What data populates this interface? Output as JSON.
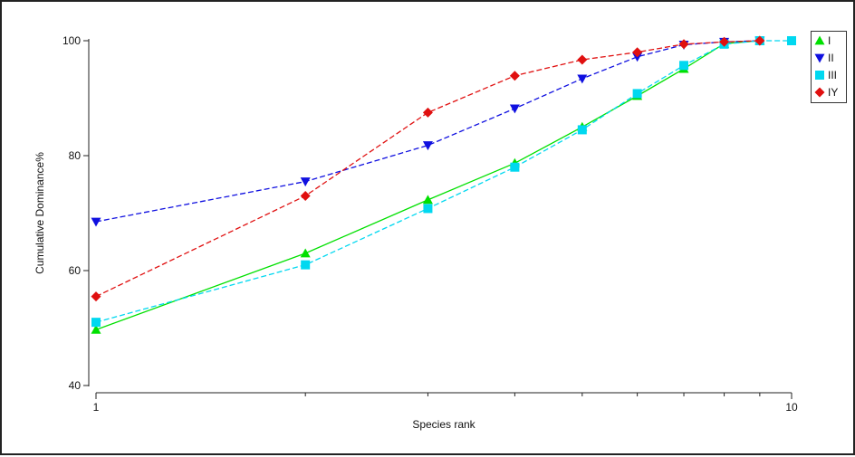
{
  "chart_data": {
    "type": "line",
    "title": "",
    "xlabel": "Species rank",
    "ylabel": "Cumulative Dominance%",
    "x_scale": "log",
    "xlim": [
      1,
      10
    ],
    "ylim": [
      40,
      100
    ],
    "y_ticks": [
      40,
      60,
      80,
      100
    ],
    "x_tick_labels": [
      {
        "value": 1,
        "label": "1"
      },
      {
        "value": 10,
        "label": "10"
      }
    ],
    "x_minor_ticks": [
      2,
      3,
      4,
      5,
      6,
      7,
      8,
      9
    ],
    "legend_position": "top-right",
    "grid": false,
    "series": [
      {
        "name": "I",
        "color": "#00e000",
        "marker": "triangle-up",
        "line_style": "solid",
        "x": [
          1,
          2,
          3,
          4,
          5,
          6,
          7,
          8,
          9
        ],
        "y": [
          49.7,
          63.0,
          72.3,
          78.7,
          85.0,
          90.4,
          95.1,
          99.5,
          100
        ]
      },
      {
        "name": "II",
        "color": "#1010e0",
        "marker": "triangle-down",
        "line_style": "dashed",
        "x": [
          1,
          2,
          3,
          4,
          5,
          6,
          7,
          8,
          9
        ],
        "y": [
          68.5,
          75.5,
          81.8,
          88.2,
          93.4,
          97.2,
          99.3,
          99.8,
          100
        ]
      },
      {
        "name": "III",
        "color": "#00d8f0",
        "marker": "square",
        "line_style": "dashed",
        "x": [
          1,
          2,
          3,
          4,
          5,
          6,
          7,
          8,
          9,
          10
        ],
        "y": [
          51.0,
          61.0,
          70.8,
          78.0,
          84.5,
          90.8,
          95.7,
          99.4,
          100,
          100
        ]
      },
      {
        "name": "IY",
        "color": "#e01010",
        "marker": "diamond",
        "line_style": "dashed",
        "x": [
          1,
          2,
          3,
          4,
          5,
          6,
          7,
          8,
          9
        ],
        "y": [
          55.5,
          73.0,
          87.5,
          93.9,
          96.7,
          98.0,
          99.4,
          99.8,
          100
        ]
      }
    ]
  }
}
